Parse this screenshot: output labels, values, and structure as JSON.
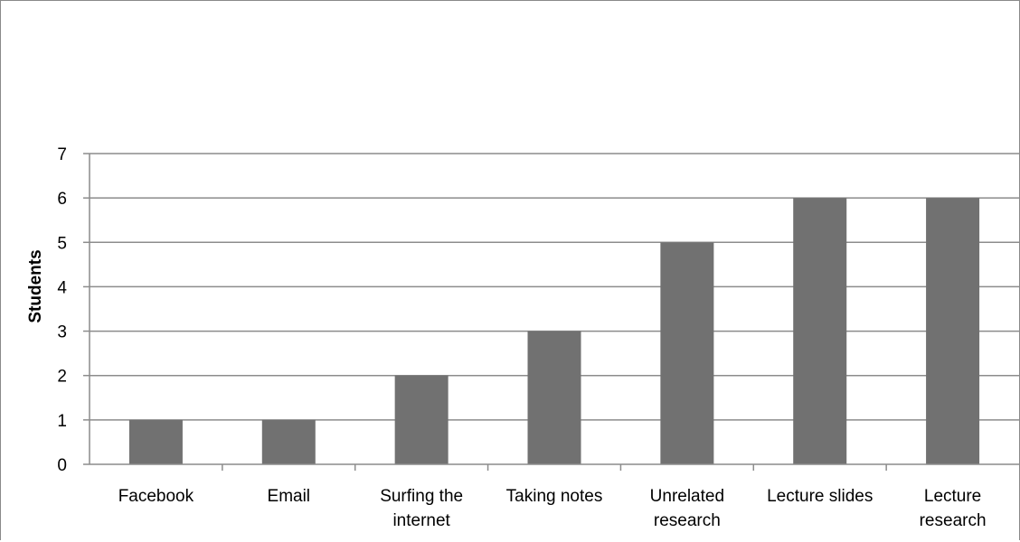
{
  "chart_data": {
    "type": "bar",
    "title": "",
    "xlabel": "",
    "ylabel": "Students",
    "categories": [
      "Facebook",
      "Email",
      "Surfing the internet",
      "Taking notes",
      "Unrelated research",
      "Lecture slides",
      "Lecture research"
    ],
    "category_label_lines": [
      [
        "Facebook"
      ],
      [
        "Email"
      ],
      [
        "Surfing the",
        "internet"
      ],
      [
        "Taking notes"
      ],
      [
        "Unrelated",
        "research"
      ],
      [
        "Lecture slides"
      ],
      [
        "Lecture",
        "research"
      ]
    ],
    "values": [
      1,
      1,
      2,
      3,
      5,
      6,
      6
    ],
    "ylim": [
      0,
      7
    ],
    "yticks": [
      "0",
      "1",
      "2",
      "3",
      "4",
      "5",
      "6",
      "7"
    ],
    "grid": true,
    "legend": "none",
    "colors": {
      "bar": "#717171",
      "grid": "#8c8c8c",
      "axis": "#8c8c8c"
    }
  }
}
